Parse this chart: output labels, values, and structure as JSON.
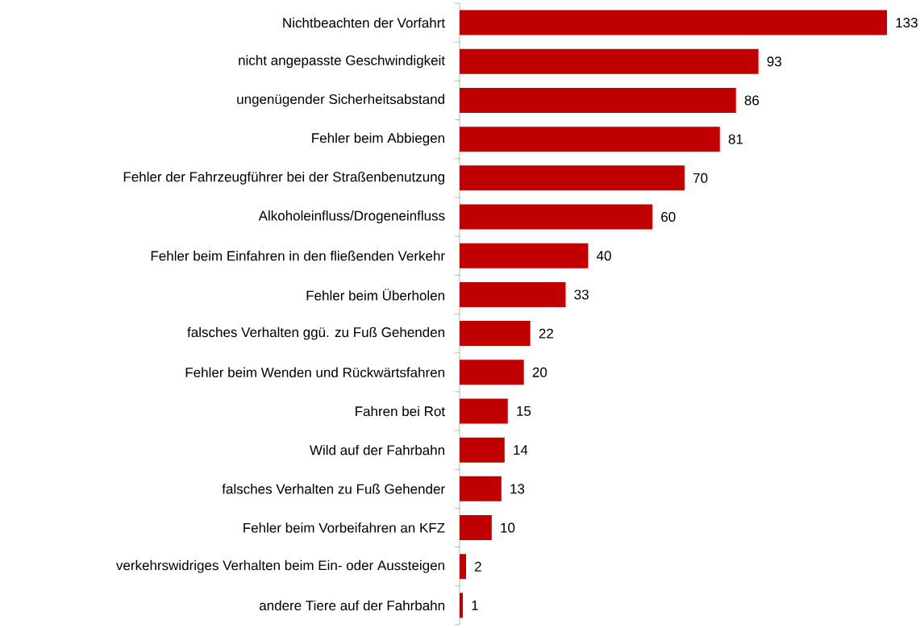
{
  "chart_data": {
    "type": "bar",
    "orientation": "horizontal",
    "data_labels": true,
    "color": "#c00000",
    "categories": [
      "Nichtbeachten der Vorfahrt",
      "nicht angepasste Geschwindigkeit",
      "ungenügender Sicherheitsabstand",
      "Fehler beim Abbiegen",
      "Fehler der Fahrzeugführer bei der Straßenbenutzung",
      "Alkoholeinfluss/Drogeneinfluss",
      "Fehler beim Einfahren in den fließenden Verkehr",
      "Fehler beim Überholen",
      "falsches Verhalten ggü. zu Fuß Gehenden",
      "Fehler beim Wenden und Rückwärtsfahren",
      "Fahren bei Rot",
      "Wild auf der Fahrbahn",
      "falsches Verhalten zu Fuß Gehender",
      "Fehler beim Vorbeifahren an KFZ",
      "verkehrswidriges Verhalten beim Ein- oder Aussteigen",
      "andere Tiere auf der Fahrbahn"
    ],
    "values": [
      133,
      93,
      86,
      81,
      70,
      60,
      40,
      33,
      22,
      20,
      15,
      14,
      13,
      10,
      2,
      1
    ]
  }
}
